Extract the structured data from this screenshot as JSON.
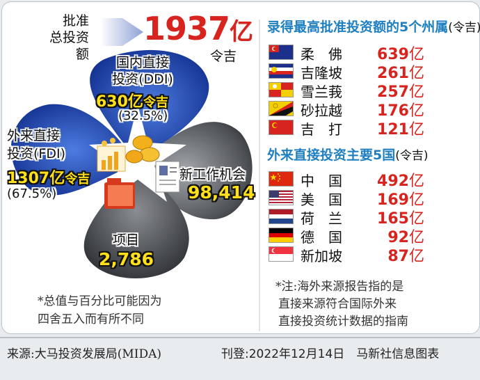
{
  "header": {
    "total_label_line1": "批准",
    "total_label_line2": "总投资额",
    "total_value": "1937",
    "total_unit_yi": "亿",
    "total_unit_ringgit": "令吉"
  },
  "ddi": {
    "title_line1": "国内直接",
    "title_line2": "投资(DDI)",
    "value": "630亿",
    "unit": "令吉",
    "percent": "(32.5%)"
  },
  "fdi": {
    "title_line1": "外来直接",
    "title_line2": "投资(FDI)",
    "value": "1307亿",
    "unit": "令吉",
    "percent": "(67.5%)"
  },
  "jobs": {
    "title": "新工作机会",
    "value": "98,414"
  },
  "projects": {
    "title": "项目",
    "value": "2,786"
  },
  "note_left": {
    "line1": "*总值与百分比可能因为",
    "line2": "四舍五入而有所不同"
  },
  "states_section": {
    "title": "录得最高批准投资额的5个州属",
    "title_suffix": "(令吉)",
    "rows": [
      {
        "name": "柔　佛",
        "value": "639",
        "unit": "亿",
        "flag": "johor-flag-icon"
      },
      {
        "name": "吉隆坡",
        "value": "261",
        "unit": "亿",
        "flag": "kuala-lumpur-flag-icon"
      },
      {
        "name": "雪兰莪",
        "value": "257",
        "unit": "亿",
        "flag": "selangor-flag-icon"
      },
      {
        "name": "砂拉越",
        "value": "176",
        "unit": "亿",
        "flag": "sarawak-flag-icon"
      },
      {
        "name": "吉　打",
        "value": "121",
        "unit": "亿",
        "flag": "kedah-flag-icon"
      }
    ]
  },
  "countries_section": {
    "title": "外来直接投资主要5国",
    "title_suffix": "(令吉)",
    "rows": [
      {
        "name": "中　国",
        "value": "492",
        "unit": "亿",
        "flag": "china-flag-icon"
      },
      {
        "name": "美　国",
        "value": "169",
        "unit": "亿",
        "flag": "usa-flag-icon"
      },
      {
        "name": "荷　兰",
        "value": "165",
        "unit": "亿",
        "flag": "netherlands-flag-icon"
      },
      {
        "name": "德　国",
        "value": "92",
        "unit": "亿",
        "flag": "germany-flag-icon"
      },
      {
        "name": "新加坡",
        "value": "87",
        "unit": "亿",
        "flag": "singapore-flag-icon"
      }
    ]
  },
  "note_right": {
    "line1": "*注:海外来源报告指的是",
    "line2": "直接来源符合国际外来",
    "line3": "直接投资统计数据的指南"
  },
  "footer": {
    "source": "来源:大马投资发展局(MIDA)",
    "published": "刊登:2022年12月14日　马新社信息图表"
  },
  "colors": {
    "accent_blue": "#1f7fc0",
    "value_red": "#d7241f",
    "highlight_yellow": "#ffe01a",
    "petal_blue": "#1f3fa8",
    "petal_gray": "#4a4d52"
  }
}
